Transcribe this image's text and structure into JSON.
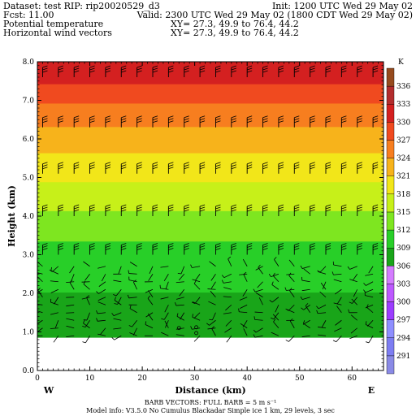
{
  "header": {
    "dataset": "Dataset: test   RIP: rip20020529_d3",
    "init": "Init: 1200 UTC Wed 29 May 02",
    "fcst": "Fcst:    11.00",
    "valid": "Valid: 2300 UTC Wed 29 May 02 (1800 CDT Wed 29 May 02)",
    "field1": "Potential temperature",
    "xy1": "XY=  27.3, 49.9 to  76.4, 44.2",
    "field2": "Horizontal wind vectors",
    "xy2": "XY=  27.3, 49.9 to  76.4, 44.2"
  },
  "footer": {
    "barb_note": "BARB VECTORS:  FULL BARB = 5 m s⁻¹",
    "model_info": "Model info: V3.5.0 No Cumulus Blackadar  Simple ice    1 km,  29 levels,    3 sec"
  },
  "chart_data": {
    "type": "heatmap",
    "title": "Potential temperature",
    "xlabel": "Distance (km)",
    "ylabel": "Height (km)",
    "xlim": [
      0,
      66
    ],
    "ylim": [
      0,
      8
    ],
    "x_ticks": [
      "0",
      "10",
      "20",
      "30",
      "40",
      "50",
      "60"
    ],
    "y_ticks": [
      "0.0",
      "1.0",
      "2.0",
      "3.0",
      "4.0",
      "5.0",
      "6.0",
      "7.0",
      "8.0"
    ],
    "x_end_labels": {
      "left": "W",
      "right": "E"
    },
    "ground_height_km": 0.85,
    "colorbar": {
      "unit": "K",
      "levels": [
        291,
        294,
        297,
        300,
        303,
        306,
        309,
        312,
        315,
        318,
        321,
        324,
        327,
        330,
        333,
        336
      ],
      "colors": [
        "#8a8ae6",
        "#7d7df2",
        "#8f8fff",
        "#9c3dff",
        "#bd59ff",
        "#d47cff",
        "#19a519",
        "#28cf28",
        "#7ee620",
        "#c7f019",
        "#f2e619",
        "#f7b31b",
        "#f77e1f",
        "#f04a1f",
        "#d42020",
        "#b32d2d",
        "#964b1e"
      ]
    },
    "theta_profile": [
      [
        0.85,
        308.0
      ],
      [
        1.5,
        308.5
      ],
      [
        2.0,
        309.0
      ],
      [
        2.5,
        310.0
      ],
      [
        3.0,
        311.0
      ],
      [
        3.5,
        312.5
      ],
      [
        4.0,
        314.5
      ],
      [
        4.5,
        316.5
      ],
      [
        5.0,
        318.5
      ],
      [
        5.5,
        320.5
      ],
      [
        6.0,
        322.5
      ],
      [
        6.5,
        325.0
      ],
      [
        7.0,
        327.5
      ],
      [
        7.5,
        330.5
      ],
      [
        8.0,
        333.0
      ]
    ],
    "wind_vectors": {
      "upper_levels_km": [
        7.6,
        6.3,
        5.1,
        4.0,
        3.0
      ],
      "upper_speed_ms": 15,
      "lower_region_km": [
        0.9,
        2.8
      ],
      "lower_speed_ms": 5,
      "x_spacing_km": 3
    }
  }
}
